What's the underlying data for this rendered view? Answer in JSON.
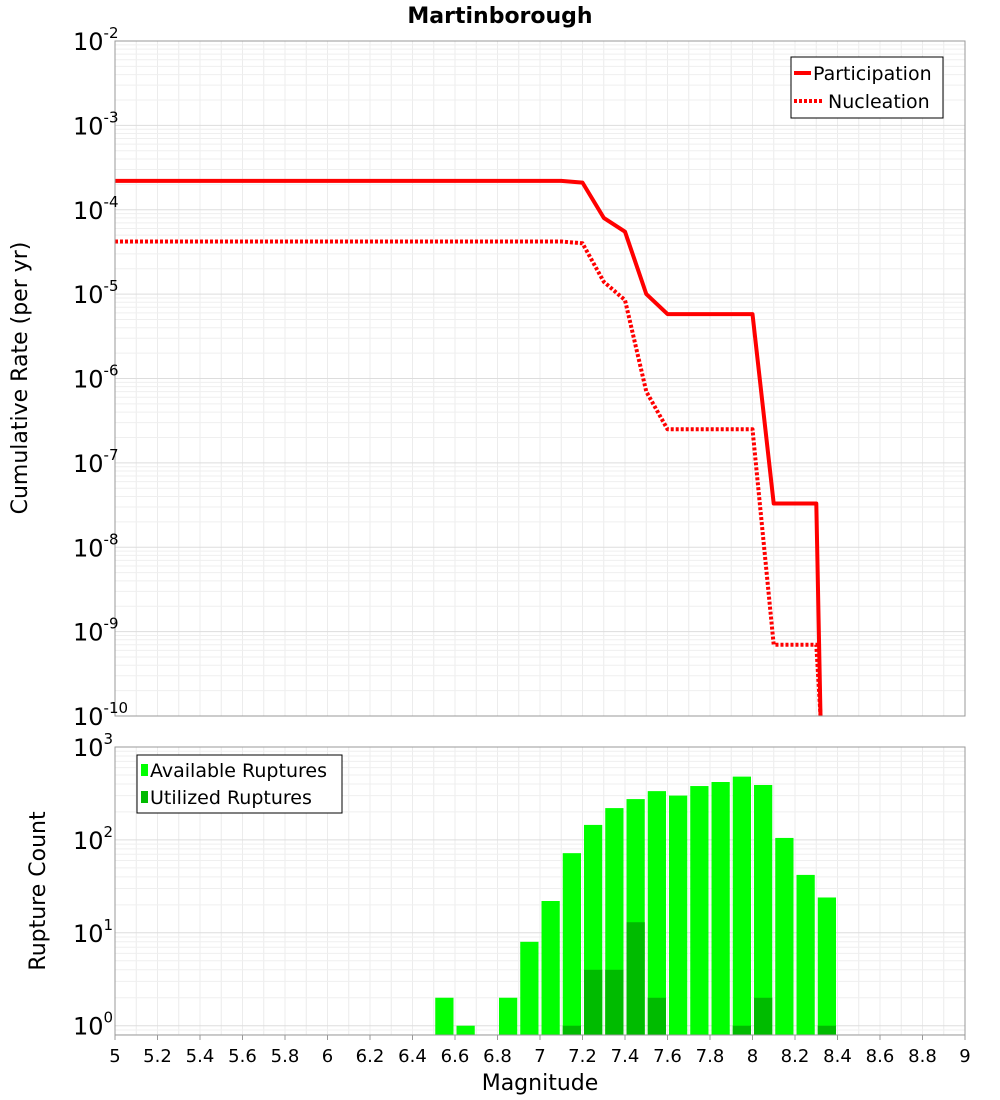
{
  "chart_data": [
    {
      "type": "line",
      "title": "Martinborough",
      "xlabel": "",
      "ylabel": "Cumulative Rate (per yr)",
      "xlim": [
        5,
        9
      ],
      "ylim_log10": [
        -10,
        -2
      ],
      "y_scale": "log",
      "y_ticks": [
        {
          "base": "10",
          "exp": "-2",
          "value": -2
        },
        {
          "base": "10",
          "exp": "-3",
          "value": -3
        },
        {
          "base": "10",
          "exp": "-4",
          "value": -4
        },
        {
          "base": "10",
          "exp": "-5",
          "value": -5
        },
        {
          "base": "10",
          "exp": "-6",
          "value": -6
        },
        {
          "base": "10",
          "exp": "-7",
          "value": -7
        },
        {
          "base": "10",
          "exp": "-8",
          "value": -8
        },
        {
          "base": "10",
          "exp": "-9",
          "value": -9
        },
        {
          "base": "10",
          "exp": "-10",
          "value": -10
        }
      ],
      "grid": true,
      "legend_position": "top-right",
      "series": [
        {
          "name": "Participation",
          "color": "#ff0000",
          "style": "solid",
          "x": [
            5.0,
            7.1,
            7.2,
            7.3,
            7.4,
            7.5,
            7.6,
            7.7,
            7.8,
            7.9,
            8.0,
            8.1,
            8.2,
            8.3,
            8.32
          ],
          "y": [
            0.00022,
            0.00022,
            0.00021,
            8e-05,
            5.5e-05,
            1e-05,
            5.8e-06,
            5.8e-06,
            5.8e-06,
            5.8e-06,
            5.8e-06,
            3.3e-08,
            3.3e-08,
            3.3e-08,
            1e-10
          ]
        },
        {
          "name": "Nucleation",
          "color": "#ff0000",
          "style": "dotted",
          "x": [
            5.0,
            7.1,
            7.2,
            7.3,
            7.4,
            7.5,
            7.6,
            7.7,
            7.8,
            7.9,
            8.0,
            8.1,
            8.2,
            8.3,
            8.32
          ],
          "y": [
            4.2e-05,
            4.2e-05,
            4e-05,
            1.4e-05,
            8.5e-06,
            7e-07,
            2.5e-07,
            2.5e-07,
            2.5e-07,
            2.5e-07,
            2.5e-07,
            7e-10,
            7e-10,
            7e-10,
            1e-10
          ]
        }
      ]
    },
    {
      "type": "bar",
      "title": "",
      "xlabel": "Magnitude",
      "ylabel": "Rupture Count",
      "xlim": [
        5,
        9
      ],
      "x_ticks": [
        "5",
        "5.2",
        "5.4",
        "5.6",
        "5.8",
        "6",
        "6.2",
        "6.4",
        "6.6",
        "6.8",
        "7",
        "7.2",
        "7.4",
        "7.6",
        "7.8",
        "8",
        "8.2",
        "8.4",
        "8.6",
        "8.8",
        "9"
      ],
      "y_scale": "log",
      "ylim_log10": [
        -0.1,
        3
      ],
      "y_ticks": [
        {
          "base": "10",
          "exp": "3",
          "value": 3
        },
        {
          "base": "10",
          "exp": "2",
          "value": 2
        },
        {
          "base": "10",
          "exp": "1",
          "value": 1
        },
        {
          "base": "10",
          "exp": "0",
          "value": 0
        }
      ],
      "grid": true,
      "legend_position": "top-left",
      "bin_width": 0.1,
      "categories": [
        6.55,
        6.65,
        6.85,
        6.95,
        7.05,
        7.15,
        7.25,
        7.35,
        7.45,
        7.55,
        7.65,
        7.75,
        7.85,
        7.95,
        8.05,
        8.15,
        8.25,
        8.35
      ],
      "series": [
        {
          "name": "Available Ruptures",
          "color": "#00ff00",
          "values": [
            2,
            1,
            2,
            8,
            22,
            72,
            145,
            220,
            275,
            335,
            300,
            380,
            420,
            480,
            390,
            105,
            42,
            24
          ]
        },
        {
          "name": "Utilized Ruptures",
          "color": "#00bb00",
          "values": [
            0,
            0,
            0,
            0,
            0,
            1,
            4,
            4,
            13,
            2,
            0,
            0,
            0,
            1,
            2,
            0,
            0,
            1
          ]
        }
      ]
    }
  ]
}
